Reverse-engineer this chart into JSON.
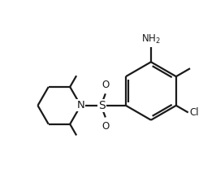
{
  "background_color": "#ffffff",
  "line_color": "#1a1a1a",
  "line_width": 1.6,
  "figsize": [
    2.66,
    2.24
  ],
  "dpi": 100,
  "xlim": [
    0,
    10
  ],
  "ylim": [
    0,
    8.4
  ]
}
